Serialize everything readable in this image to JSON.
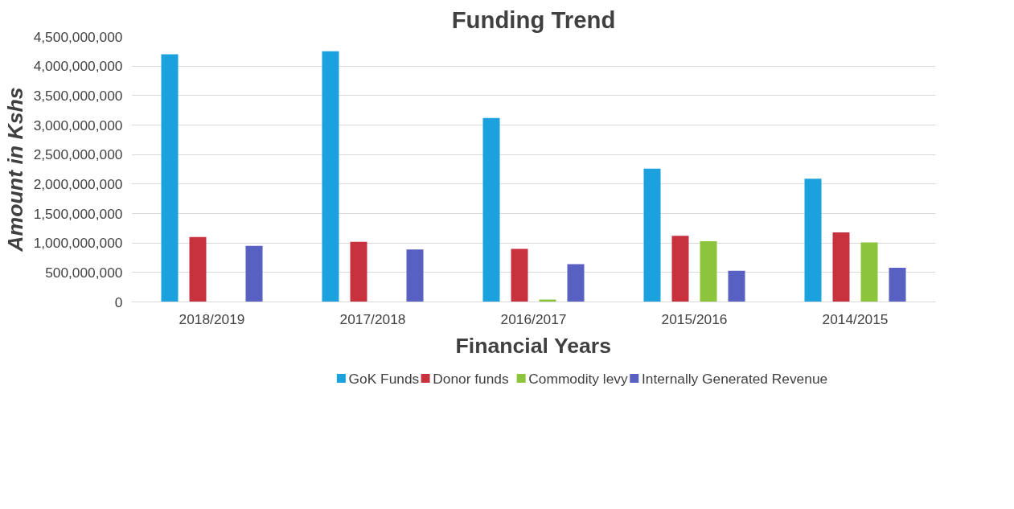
{
  "chart_data": {
    "type": "bar",
    "title": "Funding Trend",
    "xlabel": "Financial Years",
    "ylabel": "Amount in Kshs",
    "categories": [
      "2018/2019",
      "2017/2018",
      "2016/2017",
      "2015/2016",
      "2014/2015"
    ],
    "series": [
      {
        "name": "GoK Funds",
        "color": "#1ba1dd",
        "values": [
          4200000000,
          4250000000,
          3120000000,
          2260000000,
          2090000000
        ]
      },
      {
        "name": "Donor funds",
        "color": "#c8323f",
        "values": [
          1100000000,
          1020000000,
          900000000,
          1120000000,
          1180000000
        ]
      },
      {
        "name": "Commodity levy",
        "color": "#8cc43c",
        "values": [
          0,
          0,
          40000000,
          1030000000,
          1010000000
        ]
      },
      {
        "name": "Internally Generated Revenue",
        "color": "#5860c2",
        "values": [
          950000000,
          890000000,
          640000000,
          530000000,
          580000000
        ]
      }
    ],
    "ylim": [
      0,
      4500000000
    ],
    "yticks": [
      {
        "value": 0,
        "label": "0"
      },
      {
        "value": 500000000,
        "label": "500,000,000"
      },
      {
        "value": 1000000000,
        "label": "1,000,000,000"
      },
      {
        "value": 1500000000,
        "label": "1,500,000,000"
      },
      {
        "value": 2000000000,
        "label": "2,000,000,000"
      },
      {
        "value": 2500000000,
        "label": "2,500,000,000"
      },
      {
        "value": 3000000000,
        "label": "3,000,000,000"
      },
      {
        "value": 3500000000,
        "label": "3,500,000,000"
      },
      {
        "value": 4000000000,
        "label": "4,000,000,000"
      },
      {
        "value": 4500000000,
        "label": "4,500,000,000"
      }
    ],
    "grid": "y",
    "legend": "bottom"
  }
}
